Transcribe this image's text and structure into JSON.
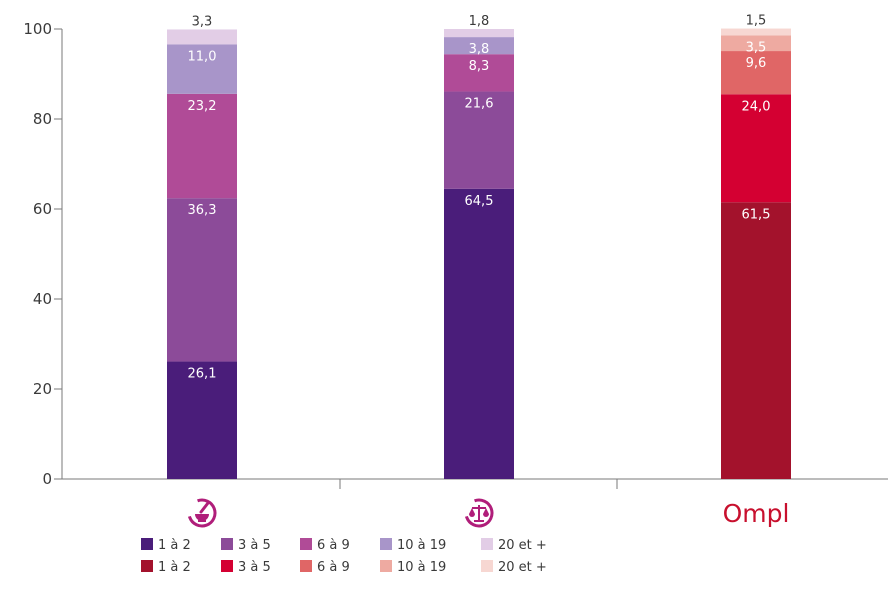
{
  "chart_data": {
    "type": "bar",
    "stacked": true,
    "ylim": [
      0,
      100
    ],
    "yticks": [
      0,
      20,
      40,
      60,
      80,
      100
    ],
    "grid": false,
    "categories": [
      "",
      "",
      ""
    ],
    "category_icons": [
      "pharmacy-mortar-icon",
      "justice-scales-icon",
      "ompl-logo"
    ],
    "category_logo_text": [
      "",
      "",
      "Ompl"
    ],
    "segment_labels": [
      "1 à 2",
      "3 à 5",
      "6 à 9",
      "10 à 19",
      "20 et +"
    ],
    "values": [
      [
        26.1,
        36.3,
        23.2,
        11.0,
        3.3
      ],
      [
        64.5,
        21.6,
        8.3,
        3.8,
        1.8
      ],
      [
        61.5,
        24.0,
        9.6,
        3.5,
        1.5
      ]
    ],
    "value_labels": [
      [
        "26,1",
        "36,3",
        "23,2",
        "11,0",
        "3,3"
      ],
      [
        "64,5",
        "21,6",
        "8,3",
        "3,8",
        "1,8"
      ],
      [
        "61,5",
        "24,0",
        "9,6",
        "3,5",
        "1,5"
      ]
    ],
    "bar_colors": [
      [
        "#4a1d7a",
        "#8c4b99",
        "#b04b97",
        "#a895c9",
        "#e2cde6"
      ],
      [
        "#4a1d7a",
        "#8c4b99",
        "#b04b97",
        "#a895c9",
        "#e2cde6"
      ],
      [
        "#a3122c",
        "#d40032",
        "#e06666",
        "#eeaaa1",
        "#f7d7d2"
      ]
    ],
    "label_colors": [
      [
        "#ffffff",
        "#ffffff",
        "#ffffff",
        "#ffffff",
        "#3a3a3a"
      ],
      [
        "#ffffff",
        "#ffffff",
        "#ffffff",
        "#ffffff",
        "#3a3a3a"
      ],
      [
        "#ffffff",
        "#ffffff",
        "#ffffff",
        "#ffffff",
        "#3a3a3a"
      ]
    ],
    "legend": [
      {
        "label": "1 à 2",
        "color": "#4a1d7a",
        "row": 0
      },
      {
        "label": "3 à 5",
        "color": "#8c4b99",
        "row": 0
      },
      {
        "label": "6 à 9",
        "color": "#b04b97",
        "row": 0
      },
      {
        "label": "10 à 19",
        "color": "#a895c9",
        "row": 0
      },
      {
        "label": "20 et +",
        "color": "#e2cde6",
        "row": 0
      },
      {
        "label": "1 à 2",
        "color": "#a3122c",
        "row": 1
      },
      {
        "label": "3 à 5",
        "color": "#d40032",
        "row": 1
      },
      {
        "label": "6 à 9",
        "color": "#e06666",
        "row": 1
      },
      {
        "label": "10 à 19",
        "color": "#eeaaa1",
        "row": 1
      },
      {
        "label": "20 et +",
        "color": "#f7d7d2",
        "row": 1
      }
    ],
    "legend_placement": "bottom-left",
    "icon_color": "#b01e7a"
  }
}
